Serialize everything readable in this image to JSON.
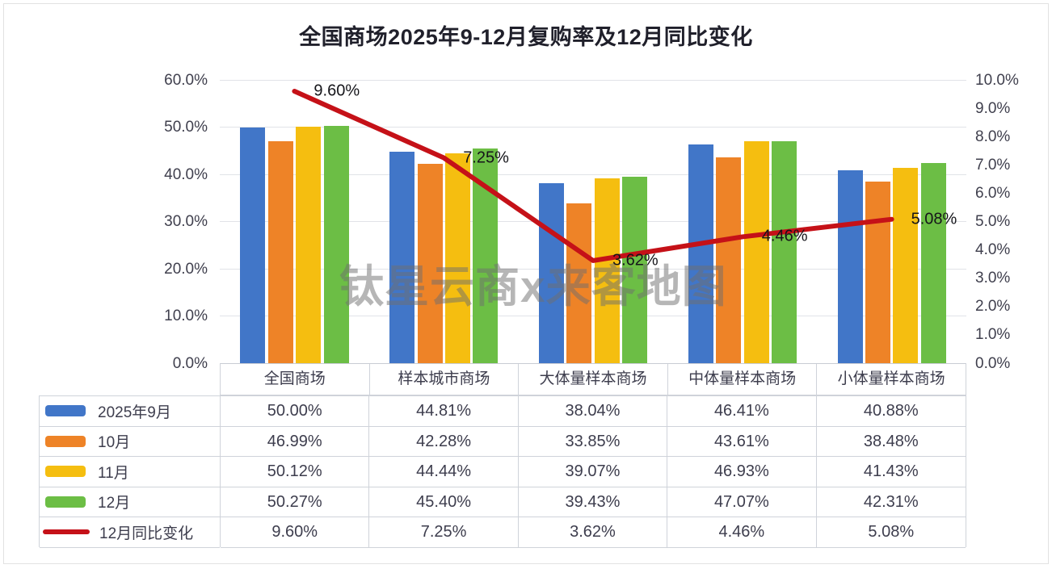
{
  "title": "全国商场2025年9-12月复购率及12月同比变化",
  "watermark": "钛星云商x来客地图",
  "colors": {
    "bar_blue": "#4176c8",
    "bar_orange": "#ee8327",
    "bar_yellow": "#f5be10",
    "bar_green": "#6cbe45",
    "line_red": "#c51118",
    "grid": "#e1e3e8",
    "table_border": "#cfd3da",
    "text": "#3d3d4d",
    "title_text": "#20202b"
  },
  "chart_data": {
    "type": "bar+line",
    "title": "全国商场2025年9-12月复购率及12月同比变化",
    "categories": [
      "全国商场",
      "样本城市商场",
      "大体量样本商场",
      "中体量样本商场",
      "小体量样本商场"
    ],
    "series": [
      {
        "name": "2025年9月",
        "type": "bar",
        "axis": "left",
        "color": "#4176c8",
        "values": [
          50.0,
          44.81,
          38.04,
          46.41,
          40.88
        ]
      },
      {
        "name": "10月",
        "type": "bar",
        "axis": "left",
        "color": "#ee8327",
        "values": [
          46.99,
          42.28,
          33.85,
          43.61,
          38.48
        ]
      },
      {
        "name": "11月",
        "type": "bar",
        "axis": "left",
        "color": "#f5be10",
        "values": [
          50.12,
          44.44,
          39.07,
          46.93,
          41.43
        ]
      },
      {
        "name": "12月",
        "type": "bar",
        "axis": "left",
        "color": "#6cbe45",
        "values": [
          50.27,
          45.4,
          39.43,
          47.07,
          42.31
        ]
      },
      {
        "name": "12月同比变化",
        "type": "line",
        "axis": "right",
        "color": "#c51118",
        "values": [
          9.6,
          7.25,
          3.62,
          4.46,
          5.08
        ],
        "labels": [
          "9.60%",
          "7.25%",
          "3.62%",
          "4.46%",
          "5.08%"
        ]
      }
    ],
    "left_axis": {
      "min": 0,
      "max": 60,
      "ticks": [
        "60.0%",
        "50.0%",
        "40.0%",
        "30.0%",
        "20.0%",
        "10.0%",
        "0.0%"
      ]
    },
    "right_axis": {
      "min": 0,
      "max": 10,
      "ticks": [
        "10.0%",
        "9.0%",
        "8.0%",
        "7.0%",
        "6.0%",
        "5.0%",
        "4.0%",
        "3.0%",
        "2.0%",
        "1.0%",
        "0.0%"
      ]
    },
    "grid": true,
    "legend_position": "table-left"
  },
  "table": {
    "header": [
      "全国商场",
      "样本城市商场",
      "大体量样本商场",
      "中体量样本商场",
      "小体量样本商场"
    ],
    "rows": [
      {
        "label": "2025年9月",
        "swatch": "bar",
        "color": "#4176c8",
        "values": [
          "50.00%",
          "44.81%",
          "38.04%",
          "46.41%",
          "40.88%"
        ]
      },
      {
        "label": "10月",
        "swatch": "bar",
        "color": "#ee8327",
        "values": [
          "46.99%",
          "42.28%",
          "33.85%",
          "43.61%",
          "38.48%"
        ]
      },
      {
        "label": "11月",
        "swatch": "bar",
        "color": "#f5be10",
        "values": [
          "50.12%",
          "44.44%",
          "39.07%",
          "46.93%",
          "41.43%"
        ]
      },
      {
        "label": "12月",
        "swatch": "bar",
        "color": "#6cbe45",
        "values": [
          "50.27%",
          "45.40%",
          "39.43%",
          "47.07%",
          "42.31%"
        ]
      },
      {
        "label": "12月同比变化",
        "swatch": "line",
        "color": "#c51118",
        "values": [
          "9.60%",
          "7.25%",
          "3.62%",
          "4.46%",
          "5.08%"
        ]
      }
    ]
  }
}
